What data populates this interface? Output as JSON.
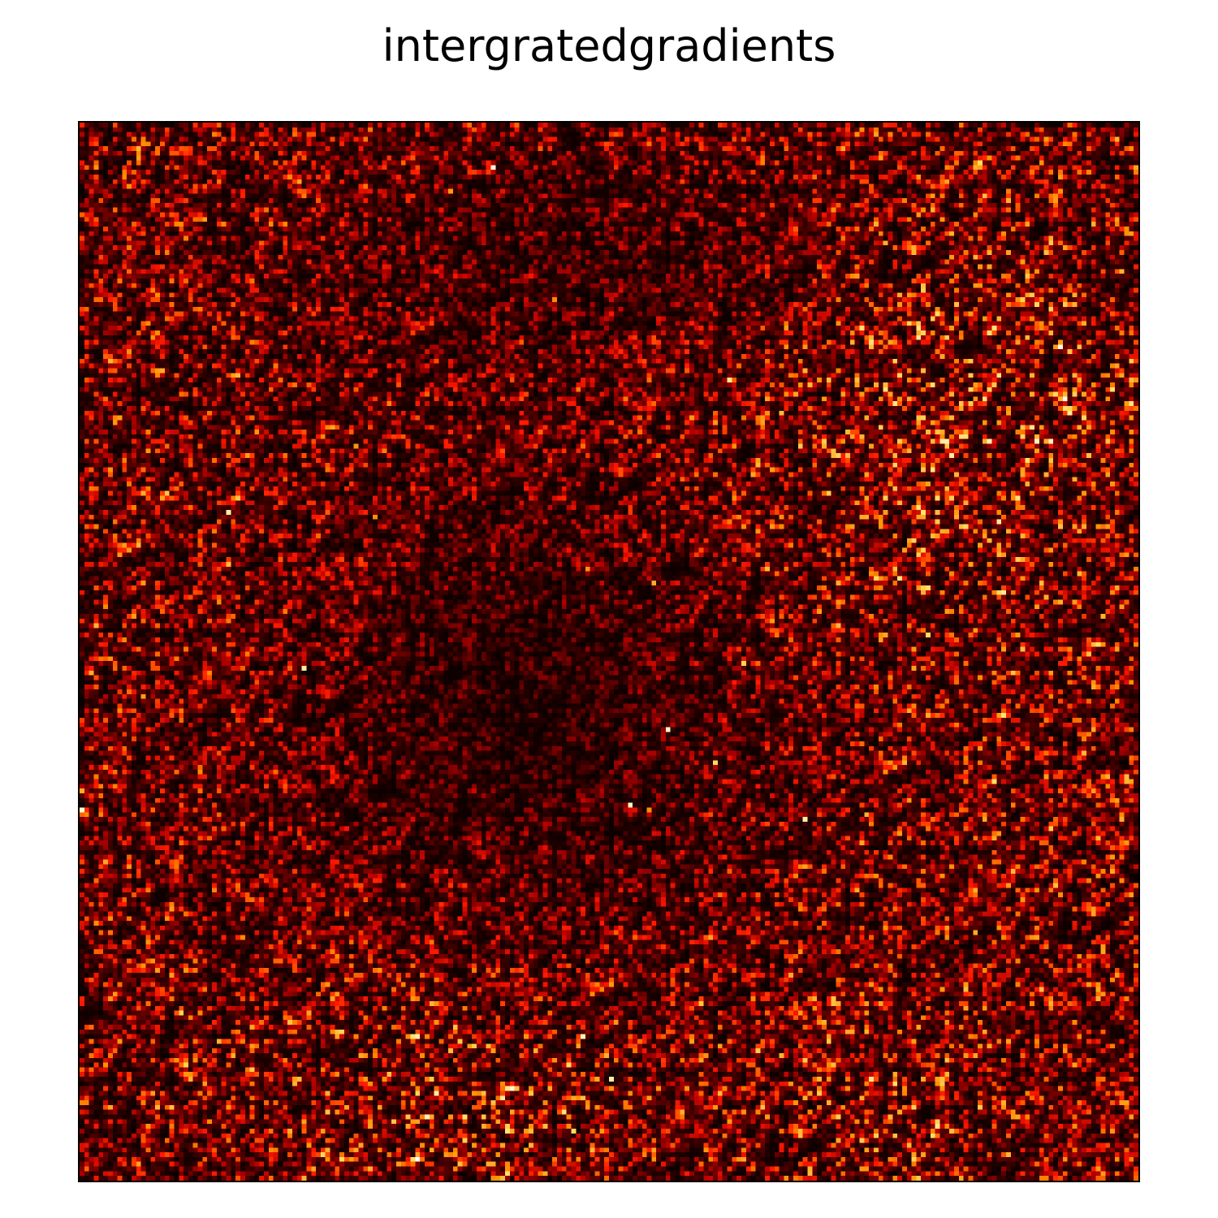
{
  "title": "intergratedgradients",
  "chart_data": {
    "type": "heatmap",
    "title": "intergratedgradients",
    "xlabel": "",
    "ylabel": "",
    "colormap": "hot",
    "colormap_stops": [
      "#0b0000",
      "#5a0000",
      "#b00000",
      "#ff1a00",
      "#ff8c00",
      "#ffe066",
      "#ffffff"
    ],
    "grid_rows": 224,
    "grid_cols": 224,
    "value_range": [
      0,
      1
    ],
    "axes_ticks": false,
    "grid": false,
    "legend": "none"
  }
}
